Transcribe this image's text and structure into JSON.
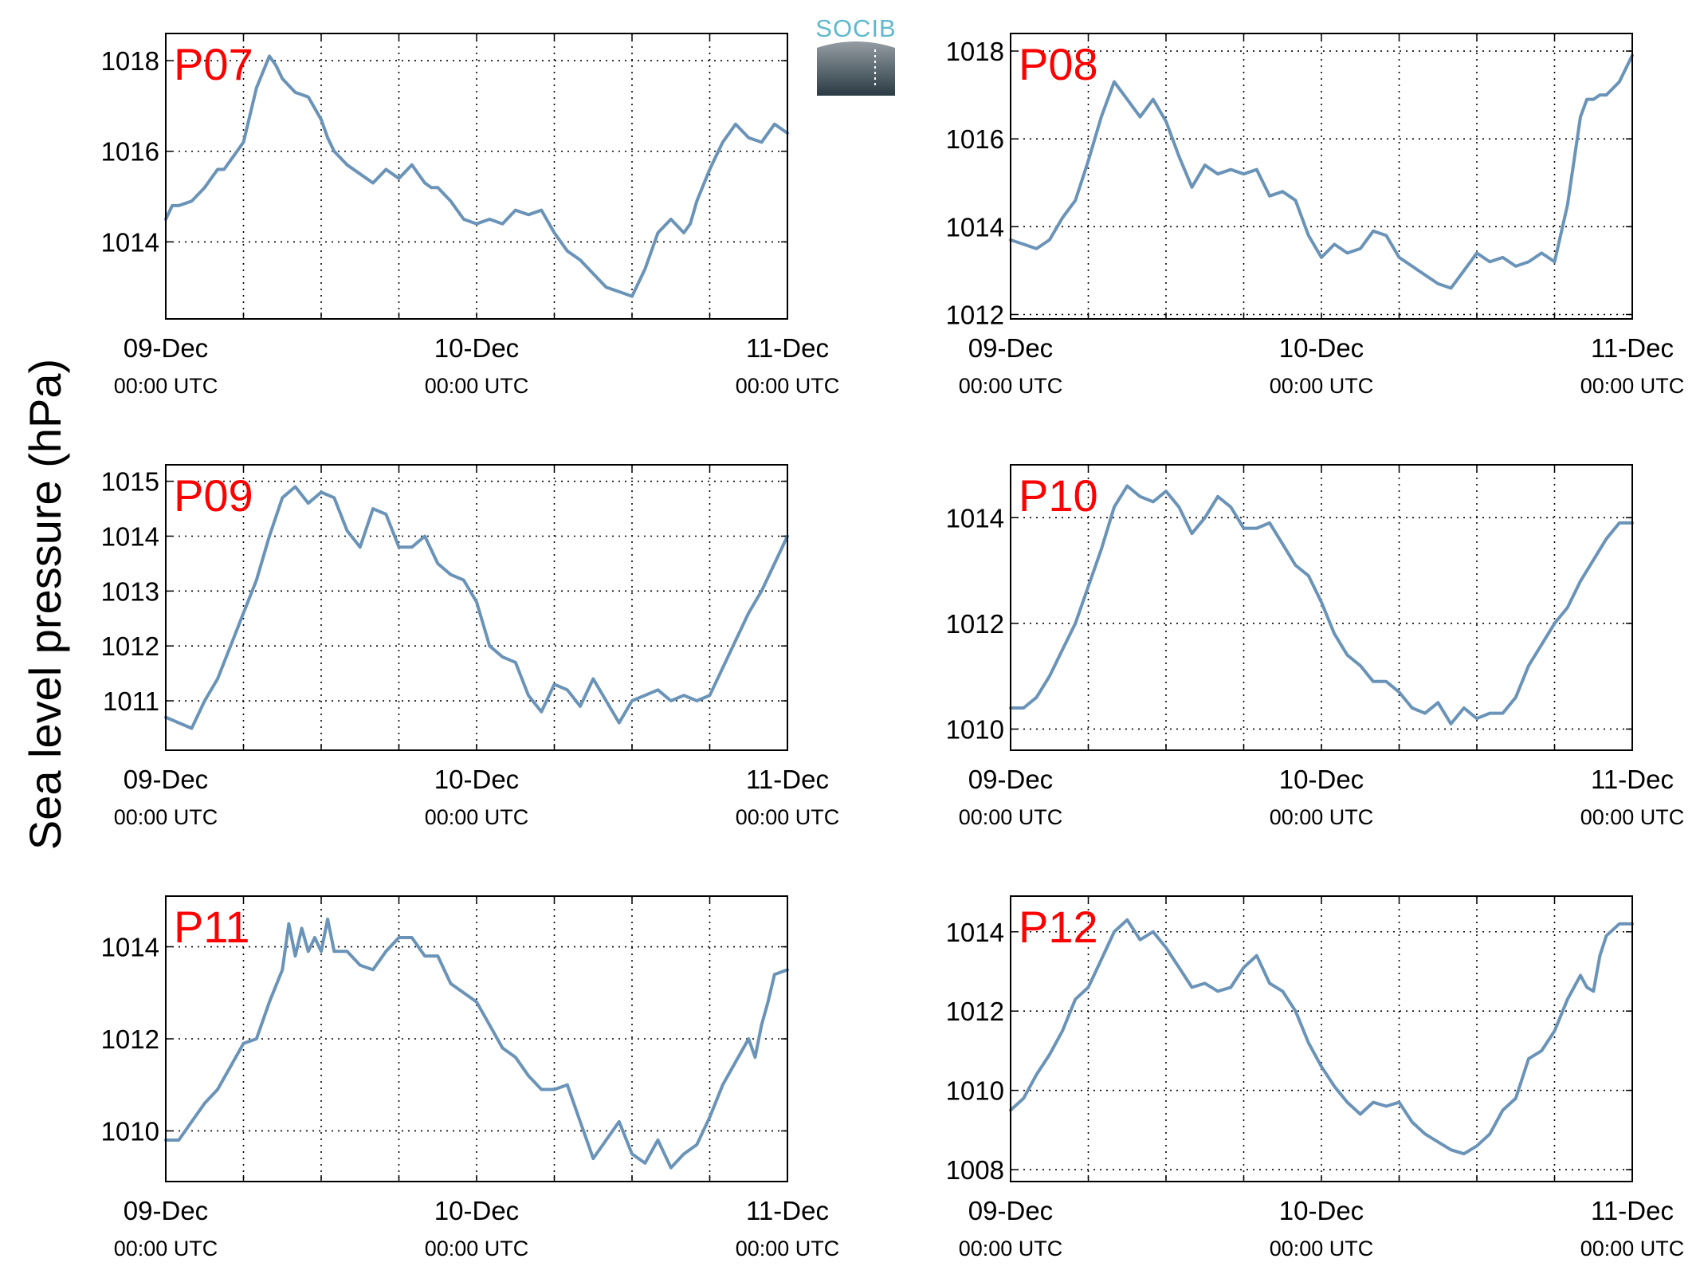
{
  "figure": {
    "ylabel": "Sea level pressure (hPa)",
    "logo_text": "SOCIB",
    "line_color": "#6a93b8",
    "label_color": "#ff0000"
  },
  "chart_data": [
    {
      "type": "line",
      "name": "P07",
      "xlim": [
        0,
        48
      ],
      "ylim": [
        1012.3,
        1018.6
      ],
      "yticks": [
        1014,
        1016,
        1018
      ],
      "xticks": [
        {
          "x": 0,
          "label": "09-Dec",
          "sub": "00:00 UTC"
        },
        {
          "x": 24,
          "label": "10-Dec",
          "sub": "00:00 UTC"
        },
        {
          "x": 48,
          "label": "11-Dec",
          "sub": "00:00 UTC"
        }
      ],
      "grid": true,
      "x": [
        0,
        0.5,
        1,
        2,
        3,
        4,
        4.5,
        5,
        6,
        7,
        8,
        8.5,
        9,
        10,
        11,
        12,
        12.5,
        13,
        14,
        15,
        16,
        17,
        18,
        19,
        20,
        20.5,
        21,
        22,
        23,
        24,
        25,
        26,
        27,
        28,
        29,
        30,
        31,
        32,
        33,
        34,
        35,
        36,
        37,
        38,
        39,
        40,
        40.5,
        41,
        42,
        42.5,
        43,
        44,
        45,
        46,
        47,
        48
      ],
      "y": [
        1014.5,
        1014.8,
        1014.8,
        1014.9,
        1015.2,
        1015.6,
        1015.6,
        1015.8,
        1016.2,
        1017.4,
        1018.1,
        1017.9,
        1017.6,
        1017.3,
        1017.2,
        1016.7,
        1016.3,
        1016.0,
        1015.7,
        1015.5,
        1015.3,
        1015.6,
        1015.4,
        1015.7,
        1015.3,
        1015.2,
        1015.2,
        1014.9,
        1014.5,
        1014.4,
        1014.5,
        1014.4,
        1014.7,
        1014.6,
        1014.7,
        1014.2,
        1013.8,
        1013.6,
        1013.3,
        1013.0,
        1012.9,
        1012.8,
        1013.4,
        1014.2,
        1014.5,
        1014.2,
        1014.4,
        1014.9,
        1015.6,
        1015.9,
        1016.2,
        1016.6,
        1016.3,
        1016.2,
        1016.6,
        1016.4
      ]
    },
    {
      "type": "line",
      "name": "P08",
      "xlim": [
        0,
        48
      ],
      "ylim": [
        1011.9,
        1018.4
      ],
      "yticks": [
        1012,
        1014,
        1016,
        1018
      ],
      "xticks": [
        {
          "x": 0,
          "label": "09-Dec",
          "sub": "00:00 UTC"
        },
        {
          "x": 24,
          "label": "10-Dec",
          "sub": "00:00 UTC"
        },
        {
          "x": 48,
          "label": "11-Dec",
          "sub": "00:00 UTC"
        }
      ],
      "grid": true,
      "x": [
        0,
        1,
        2,
        3,
        4,
        5,
        6,
        7,
        8,
        9,
        10,
        11,
        12,
        13,
        14,
        15,
        16,
        17,
        18,
        19,
        20,
        21,
        22,
        23,
        24,
        25,
        26,
        27,
        28,
        29,
        30,
        31,
        32,
        33,
        34,
        35,
        36,
        37,
        38,
        39,
        40,
        41,
        42,
        43,
        44,
        44.5,
        45,
        45.5,
        46,
        47,
        48
      ],
      "y": [
        1013.7,
        1013.6,
        1013.5,
        1013.7,
        1014.2,
        1014.6,
        1015.5,
        1016.5,
        1017.3,
        1016.9,
        1016.5,
        1016.9,
        1016.4,
        1015.6,
        1014.9,
        1015.4,
        1015.2,
        1015.3,
        1015.2,
        1015.3,
        1014.7,
        1014.8,
        1014.6,
        1013.8,
        1013.3,
        1013.6,
        1013.4,
        1013.5,
        1013.9,
        1013.8,
        1013.3,
        1013.1,
        1012.9,
        1012.7,
        1012.6,
        1013.0,
        1013.4,
        1013.2,
        1013.3,
        1013.1,
        1013.2,
        1013.4,
        1013.2,
        1014.5,
        1016.5,
        1016.9,
        1016.9,
        1017.0,
        1017.0,
        1017.3,
        1017.9
      ]
    },
    {
      "type": "line",
      "name": "P09",
      "xlim": [
        0,
        48
      ],
      "ylim": [
        1010.1,
        1015.3
      ],
      "yticks": [
        1011,
        1012,
        1013,
        1014,
        1015
      ],
      "xticks": [
        {
          "x": 0,
          "label": "09-Dec",
          "sub": "00:00 UTC"
        },
        {
          "x": 24,
          "label": "10-Dec",
          "sub": "00:00 UTC"
        },
        {
          "x": 48,
          "label": "11-Dec",
          "sub": "00:00 UTC"
        }
      ],
      "grid": true,
      "x": [
        0,
        1,
        2,
        3,
        4,
        5,
        6,
        7,
        8,
        9,
        10,
        11,
        12,
        13,
        14,
        15,
        16,
        17,
        18,
        19,
        20,
        21,
        22,
        23,
        24,
        25,
        26,
        27,
        28,
        29,
        30,
        31,
        32,
        33,
        34,
        35,
        36,
        37,
        38,
        39,
        40,
        41,
        42,
        43,
        44,
        45,
        46,
        47,
        48
      ],
      "y": [
        1010.7,
        1010.6,
        1010.5,
        1011.0,
        1011.4,
        1012.0,
        1012.6,
        1013.2,
        1014.0,
        1014.7,
        1014.9,
        1014.6,
        1014.8,
        1014.7,
        1014.1,
        1013.8,
        1014.5,
        1014.4,
        1013.8,
        1013.8,
        1014.0,
        1013.5,
        1013.3,
        1013.2,
        1012.8,
        1012.0,
        1011.8,
        1011.7,
        1011.1,
        1010.8,
        1011.3,
        1011.2,
        1010.9,
        1011.4,
        1011.0,
        1010.6,
        1011.0,
        1011.1,
        1011.2,
        1011.0,
        1011.1,
        1011.0,
        1011.1,
        1011.6,
        1012.1,
        1012.6,
        1013.0,
        1013.5,
        1014.0
      ]
    },
    {
      "type": "line",
      "name": "P10",
      "xlim": [
        0,
        48
      ],
      "ylim": [
        1009.6,
        1015.0
      ],
      "yticks": [
        1010,
        1012,
        1014
      ],
      "xticks": [
        {
          "x": 0,
          "label": "09-Dec",
          "sub": "00:00 UTC"
        },
        {
          "x": 24,
          "label": "10-Dec",
          "sub": "00:00 UTC"
        },
        {
          "x": 48,
          "label": "11-Dec",
          "sub": "00:00 UTC"
        }
      ],
      "grid": true,
      "x": [
        0,
        1,
        2,
        3,
        4,
        5,
        6,
        7,
        8,
        9,
        10,
        11,
        12,
        13,
        14,
        15,
        16,
        17,
        18,
        19,
        20,
        21,
        22,
        23,
        24,
        25,
        26,
        27,
        28,
        29,
        30,
        31,
        32,
        33,
        34,
        35,
        36,
        37,
        38,
        39,
        40,
        41,
        42,
        43,
        44,
        45,
        46,
        47,
        48
      ],
      "y": [
        1010.4,
        1010.4,
        1010.6,
        1011.0,
        1011.5,
        1012.0,
        1012.7,
        1013.4,
        1014.2,
        1014.6,
        1014.4,
        1014.3,
        1014.5,
        1014.2,
        1013.7,
        1014.0,
        1014.4,
        1014.2,
        1013.8,
        1013.8,
        1013.9,
        1013.5,
        1013.1,
        1012.9,
        1012.4,
        1011.8,
        1011.4,
        1011.2,
        1010.9,
        1010.9,
        1010.7,
        1010.4,
        1010.3,
        1010.5,
        1010.1,
        1010.4,
        1010.2,
        1010.3,
        1010.3,
        1010.6,
        1011.2,
        1011.6,
        1012.0,
        1012.3,
        1012.8,
        1013.2,
        1013.6,
        1013.9,
        1013.9
      ]
    },
    {
      "type": "line",
      "name": "P11",
      "xlim": [
        0,
        48
      ],
      "ylim": [
        1008.9,
        1015.1
      ],
      "yticks": [
        1010,
        1012,
        1014
      ],
      "xticks": [
        {
          "x": 0,
          "label": "09-Dec",
          "sub": "00:00 UTC"
        },
        {
          "x": 24,
          "label": "10-Dec",
          "sub": "00:00 UTC"
        },
        {
          "x": 48,
          "label": "11-Dec",
          "sub": "00:00 UTC"
        }
      ],
      "grid": true,
      "x": [
        0,
        1,
        2,
        3,
        4,
        5,
        6,
        7,
        8,
        9,
        9.5,
        10,
        10.5,
        11,
        11.5,
        12,
        12.5,
        13,
        14,
        15,
        16,
        17,
        18,
        19,
        20,
        21,
        22,
        23,
        24,
        25,
        26,
        27,
        28,
        29,
        30,
        31,
        32,
        33,
        34,
        35,
        36,
        37,
        38,
        39,
        40,
        41,
        42,
        43,
        44,
        45,
        45.5,
        46,
        46.5,
        47,
        48
      ],
      "y": [
        1009.8,
        1009.8,
        1010.2,
        1010.6,
        1010.9,
        1011.4,
        1011.9,
        1012.0,
        1012.8,
        1013.5,
        1014.5,
        1013.8,
        1014.4,
        1013.9,
        1014.2,
        1013.9,
        1014.6,
        1013.9,
        1013.9,
        1013.6,
        1013.5,
        1013.9,
        1014.2,
        1014.2,
        1013.8,
        1013.8,
        1013.2,
        1013.0,
        1012.8,
        1012.3,
        1011.8,
        1011.6,
        1011.2,
        1010.9,
        1010.9,
        1011.0,
        1010.2,
        1009.4,
        1009.8,
        1010.2,
        1009.5,
        1009.3,
        1009.8,
        1009.2,
        1009.5,
        1009.7,
        1010.3,
        1011.0,
        1011.5,
        1012.0,
        1011.6,
        1012.3,
        1012.8,
        1013.4,
        1013.5
      ]
    },
    {
      "type": "line",
      "name": "P12",
      "xlim": [
        0,
        48
      ],
      "ylim": [
        1007.7,
        1014.9
      ],
      "yticks": [
        1008,
        1010,
        1012,
        1014
      ],
      "xticks": [
        {
          "x": 0,
          "label": "09-Dec",
          "sub": "00:00 UTC"
        },
        {
          "x": 24,
          "label": "10-Dec",
          "sub": "00:00 UTC"
        },
        {
          "x": 48,
          "label": "11-Dec",
          "sub": "00:00 UTC"
        }
      ],
      "grid": true,
      "x": [
        0,
        1,
        2,
        3,
        4,
        5,
        6,
        7,
        8,
        9,
        10,
        11,
        12,
        13,
        14,
        15,
        16,
        17,
        18,
        19,
        20,
        21,
        22,
        23,
        24,
        25,
        26,
        27,
        28,
        29,
        30,
        31,
        32,
        33,
        34,
        35,
        36,
        37,
        38,
        39,
        40,
        41,
        42,
        43,
        44,
        44.5,
        45,
        45.5,
        46,
        47,
        48
      ],
      "y": [
        1009.5,
        1009.8,
        1010.4,
        1010.9,
        1011.5,
        1012.3,
        1012.6,
        1013.3,
        1014.0,
        1014.3,
        1013.8,
        1014.0,
        1013.6,
        1013.1,
        1012.6,
        1012.7,
        1012.5,
        1012.6,
        1013.1,
        1013.4,
        1012.7,
        1012.5,
        1012.0,
        1011.2,
        1010.6,
        1010.1,
        1009.7,
        1009.4,
        1009.7,
        1009.6,
        1009.7,
        1009.2,
        1008.9,
        1008.7,
        1008.5,
        1008.4,
        1008.6,
        1008.9,
        1009.5,
        1009.8,
        1010.8,
        1011.0,
        1011.5,
        1012.3,
        1012.9,
        1012.6,
        1012.5,
        1013.4,
        1013.9,
        1014.2,
        1014.2
      ]
    }
  ]
}
